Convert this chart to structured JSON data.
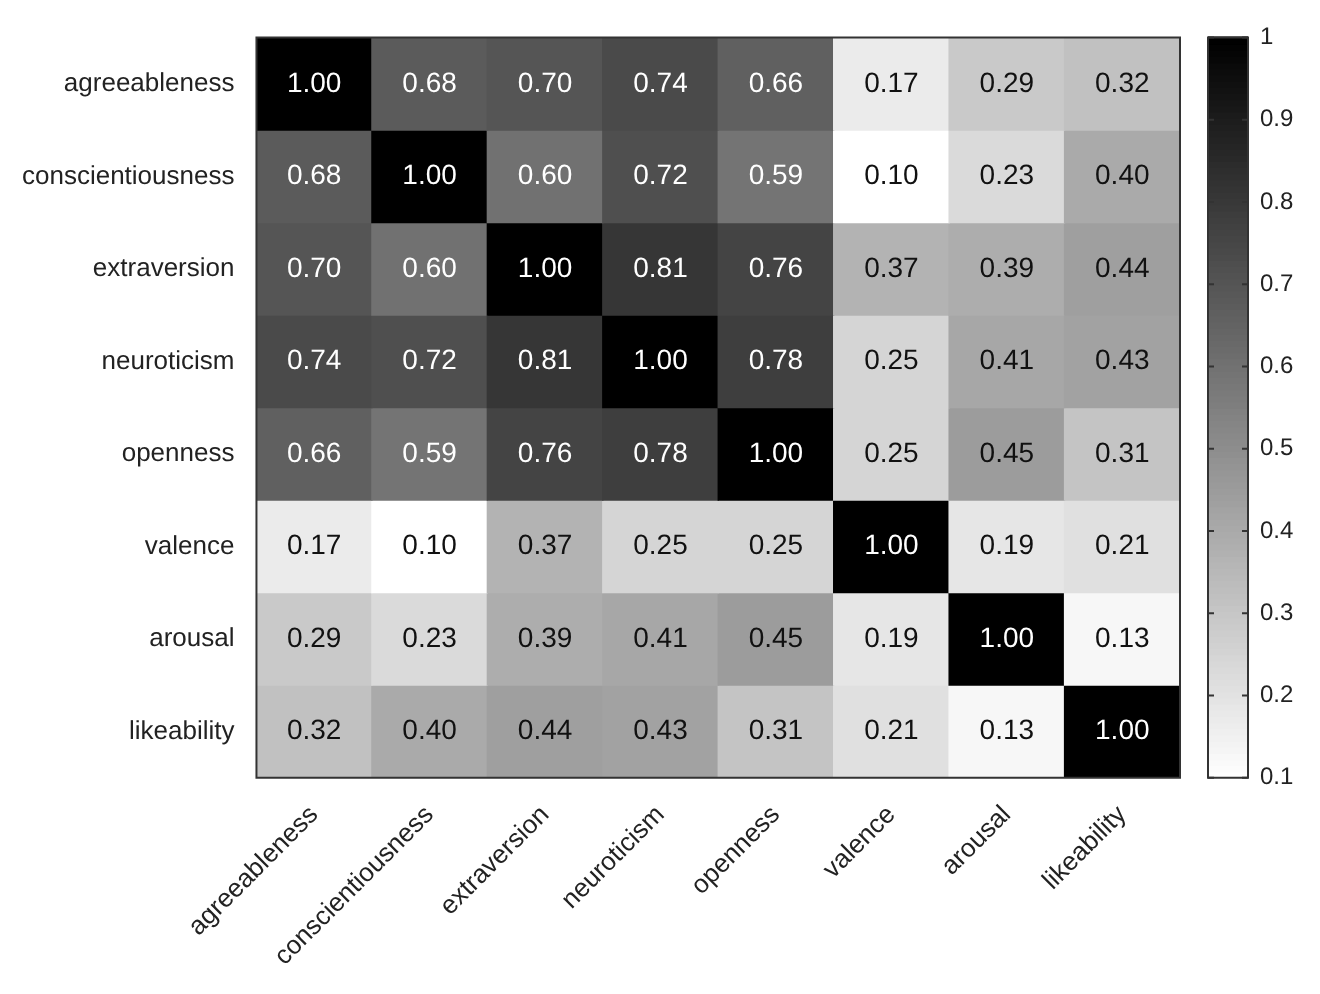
{
  "chart_data": {
    "type": "heatmap",
    "categories": [
      "agreeableness",
      "conscientiousness",
      "extraversion",
      "neuroticism",
      "openness",
      "valence",
      "arousal",
      "likeability"
    ],
    "y_categories": [
      "agreeableness",
      "conscientiousness",
      "extraversion",
      "neuroticism",
      "openness",
      "valence",
      "arousal",
      "likeability"
    ],
    "cells": [
      [
        1.0,
        0.68,
        0.7,
        0.74,
        0.66,
        0.17,
        0.29,
        0.32
      ],
      [
        0.68,
        1.0,
        0.6,
        0.72,
        0.59,
        0.1,
        0.23,
        0.4
      ],
      [
        0.7,
        0.6,
        1.0,
        0.81,
        0.76,
        0.37,
        0.39,
        0.44
      ],
      [
        0.74,
        0.72,
        0.81,
        1.0,
        0.78,
        0.25,
        0.41,
        0.43
      ],
      [
        0.66,
        0.59,
        0.76,
        0.78,
        1.0,
        0.25,
        0.45,
        0.31
      ],
      [
        0.17,
        0.1,
        0.37,
        0.25,
        0.25,
        1.0,
        0.19,
        0.21
      ],
      [
        0.29,
        0.23,
        0.39,
        0.41,
        0.45,
        0.19,
        1.0,
        0.13
      ],
      [
        0.32,
        0.4,
        0.44,
        0.43,
        0.31,
        0.21,
        0.13,
        1.0
      ]
    ],
    "cell_labels": [
      [
        "1.00",
        "0.68",
        "0.70",
        "0.74",
        "0.66",
        "0.17",
        "0.29",
        "0.32"
      ],
      [
        "0.68",
        "1.00",
        "0.60",
        "0.72",
        "0.59",
        "0.10",
        "0.23",
        "0.40"
      ],
      [
        "0.70",
        "0.60",
        "1.00",
        "0.81",
        "0.76",
        "0.37",
        "0.39",
        "0.44"
      ],
      [
        "0.74",
        "0.72",
        "0.81",
        "1.00",
        "0.78",
        "0.25",
        "0.41",
        "0.43"
      ],
      [
        "0.66",
        "0.59",
        "0.76",
        "0.78",
        "1.00",
        "0.25",
        "0.45",
        "0.31"
      ],
      [
        "0.17",
        "0.10",
        "0.37",
        "0.25",
        "0.25",
        "1.00",
        "0.19",
        "0.21"
      ],
      [
        "0.29",
        "0.23",
        "0.39",
        "0.41",
        "0.45",
        "0.19",
        "1.00",
        "0.13"
      ],
      [
        "0.32",
        "0.40",
        "0.44",
        "0.43",
        "0.31",
        "0.21",
        "0.13",
        "1.00"
      ]
    ],
    "clim": [
      0.1,
      1
    ],
    "cticks": [
      0.1,
      0.2,
      0.3,
      0.4,
      0.5,
      0.6,
      0.7,
      0.8,
      0.9,
      1
    ]
  }
}
